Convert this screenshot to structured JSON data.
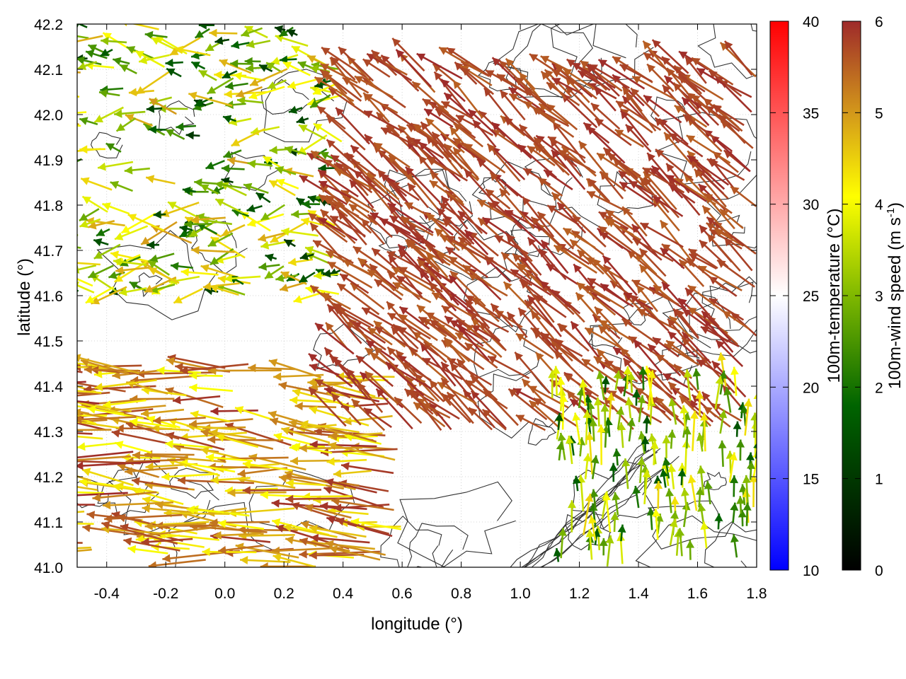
{
  "chart_data": {
    "type": "vector-field",
    "xlabel": "longitude (°)",
    "ylabel": "latitude (°)",
    "xlim": [
      -0.5,
      1.8
    ],
    "ylim": [
      41.0,
      42.2
    ],
    "x_ticks": [
      "-0.4",
      "-0.2",
      "0.0",
      "0.2",
      "0.4",
      "0.6",
      "0.8",
      "1.0",
      "1.2",
      "1.4",
      "1.6",
      "1.8"
    ],
    "y_ticks": [
      "41.0",
      "41.1",
      "41.2",
      "41.3",
      "41.4",
      "41.5",
      "41.6",
      "41.7",
      "41.8",
      "41.9",
      "42.0",
      "42.1",
      "42.2"
    ],
    "grid": true,
    "contours": "terrain elevation (unlabeled, dark grey)",
    "temperature_colorbar": {
      "label": "100m-temperature (°C)",
      "range": [
        10,
        40
      ],
      "ticks": [
        "10",
        "15",
        "20",
        "25",
        "30",
        "35",
        "40"
      ],
      "colors": [
        "#0000ff",
        "#ffffff",
        "#ff0000"
      ]
    },
    "windspeed_colorbar": {
      "label_main": "100m-wind speed (m s",
      "label_sup": "-1",
      "label_end": ")",
      "range": [
        0,
        6
      ],
      "ticks": [
        "0",
        "1",
        "2",
        "3",
        "4",
        "5",
        "6"
      ],
      "colors": [
        "#000000",
        "#006400",
        "#7fb800",
        "#ffff00",
        "#d49a1a",
        "#9e2a2a"
      ]
    },
    "wind_regions": [
      {
        "area": "west and north-west",
        "lon": [
          -0.5,
          0.4
        ],
        "lat": [
          41.6,
          42.2
        ],
        "speed_ms": [
          1,
          5
        ],
        "direction": "mostly westward, variable"
      },
      {
        "area": "south-west corridor",
        "lon": [
          -0.5,
          0.6
        ],
        "lat": [
          41.0,
          41.45
        ],
        "speed_ms": [
          4,
          6
        ],
        "direction": "strong westward (easterly wind)"
      },
      {
        "area": "central and north-east core",
        "lon": [
          0.4,
          1.8
        ],
        "lat": [
          41.3,
          42.1
        ],
        "speed_ms": [
          5.5,
          6
        ],
        "direction": "north-westward, strong"
      },
      {
        "area": "south-east coast",
        "lon": [
          1.1,
          1.8
        ],
        "lat": [
          41.0,
          41.4
        ],
        "speed_ms": [
          1.5,
          4.5
        ],
        "direction": "northward, weak"
      }
    ]
  }
}
